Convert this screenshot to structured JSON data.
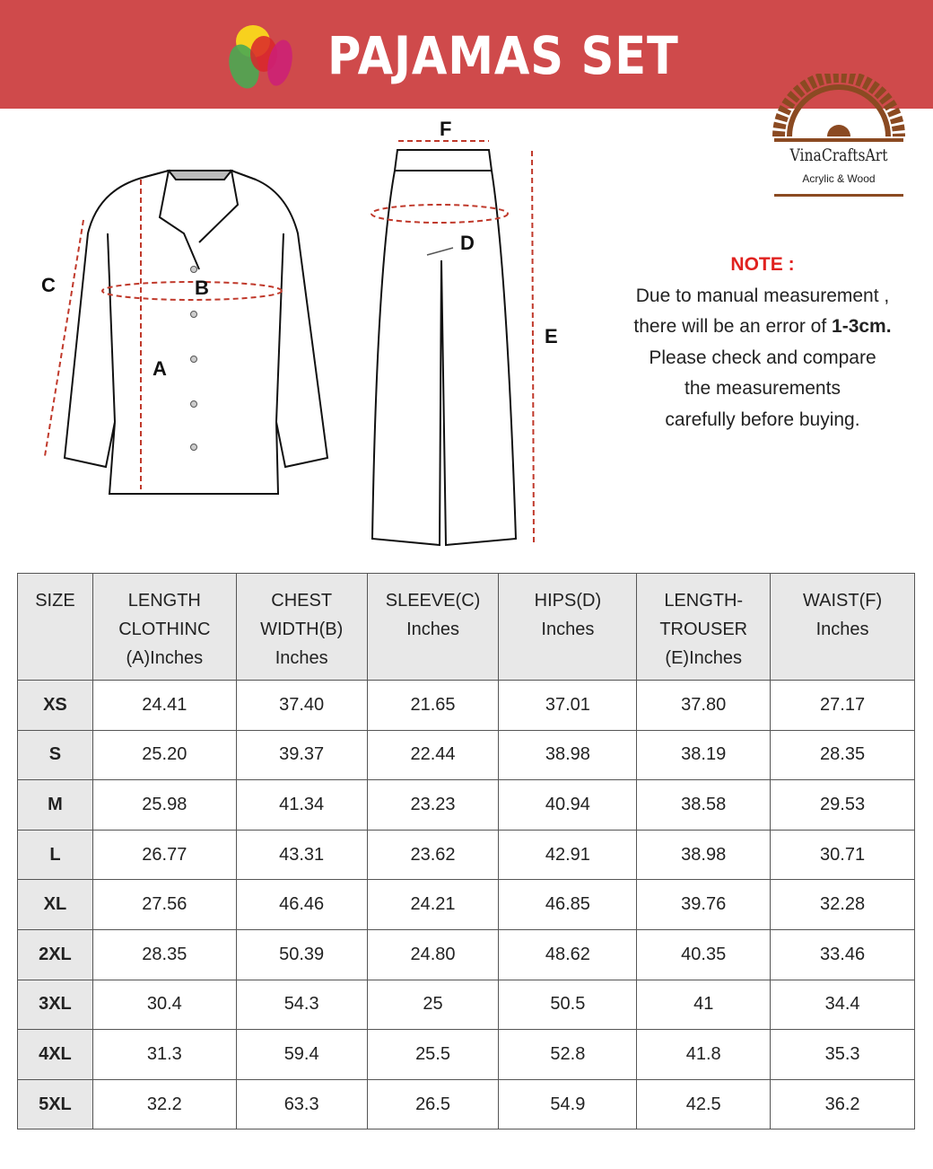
{
  "header": {
    "title": "PAJAMAS SET"
  },
  "brand": {
    "name": "VinaCraftsArt",
    "tagline": "Acrylic & Wood",
    "color": "#8b4a22"
  },
  "colors": {
    "banner": "#cf4a4b",
    "note_title": "#e0211f",
    "header_cell": "#e8e8e8"
  },
  "diagram": {
    "labels": {
      "a": "A",
      "b": "B",
      "c": "C",
      "d": "D",
      "e": "E",
      "f": "F"
    }
  },
  "note": {
    "title": "NOTE :",
    "lines": [
      "Due to manual measurement ,",
      "there will be an error of ",
      "1-3cm.",
      "Please check and compare",
      "the measurements",
      "carefully before buying."
    ]
  },
  "table": {
    "headers": [
      [
        "SIZE"
      ],
      [
        "LENGTH",
        "CLOTHINC",
        "(A)Inches"
      ],
      [
        "CHEST",
        "WIDTH(B)",
        "Inches"
      ],
      [
        "SLEEVE(C)",
        "Inches"
      ],
      [
        "HIPS(D)",
        "Inches"
      ],
      [
        "LENGTH-",
        "TROUSER",
        "(E)Inches"
      ],
      [
        "WAIST(F)",
        "Inches"
      ]
    ],
    "rows": [
      [
        "XS",
        "24.41",
        "37.40",
        "21.65",
        "37.01",
        "37.80",
        "27.17"
      ],
      [
        "S",
        "25.20",
        "39.37",
        "22.44",
        "38.98",
        "38.19",
        "28.35"
      ],
      [
        "M",
        "25.98",
        "41.34",
        "23.23",
        "40.94",
        "38.58",
        "29.53"
      ],
      [
        "L",
        "26.77",
        "43.31",
        "23.62",
        "42.91",
        "38.98",
        "30.71"
      ],
      [
        "XL",
        "27.56",
        "46.46",
        "24.21",
        "46.85",
        "39.76",
        "32.28"
      ],
      [
        "2XL",
        "28.35",
        "50.39",
        "24.80",
        "48.62",
        "40.35",
        "33.46"
      ],
      [
        "3XL",
        "30.4",
        "54.3",
        "25",
        "50.5",
        "41",
        "34.4"
      ],
      [
        "4XL",
        "31.3",
        "59.4",
        "25.5",
        "52.8",
        "41.8",
        "35.3"
      ],
      [
        "5XL",
        "32.2",
        "63.3",
        "26.5",
        "54.9",
        "42.5",
        "36.2"
      ]
    ]
  }
}
